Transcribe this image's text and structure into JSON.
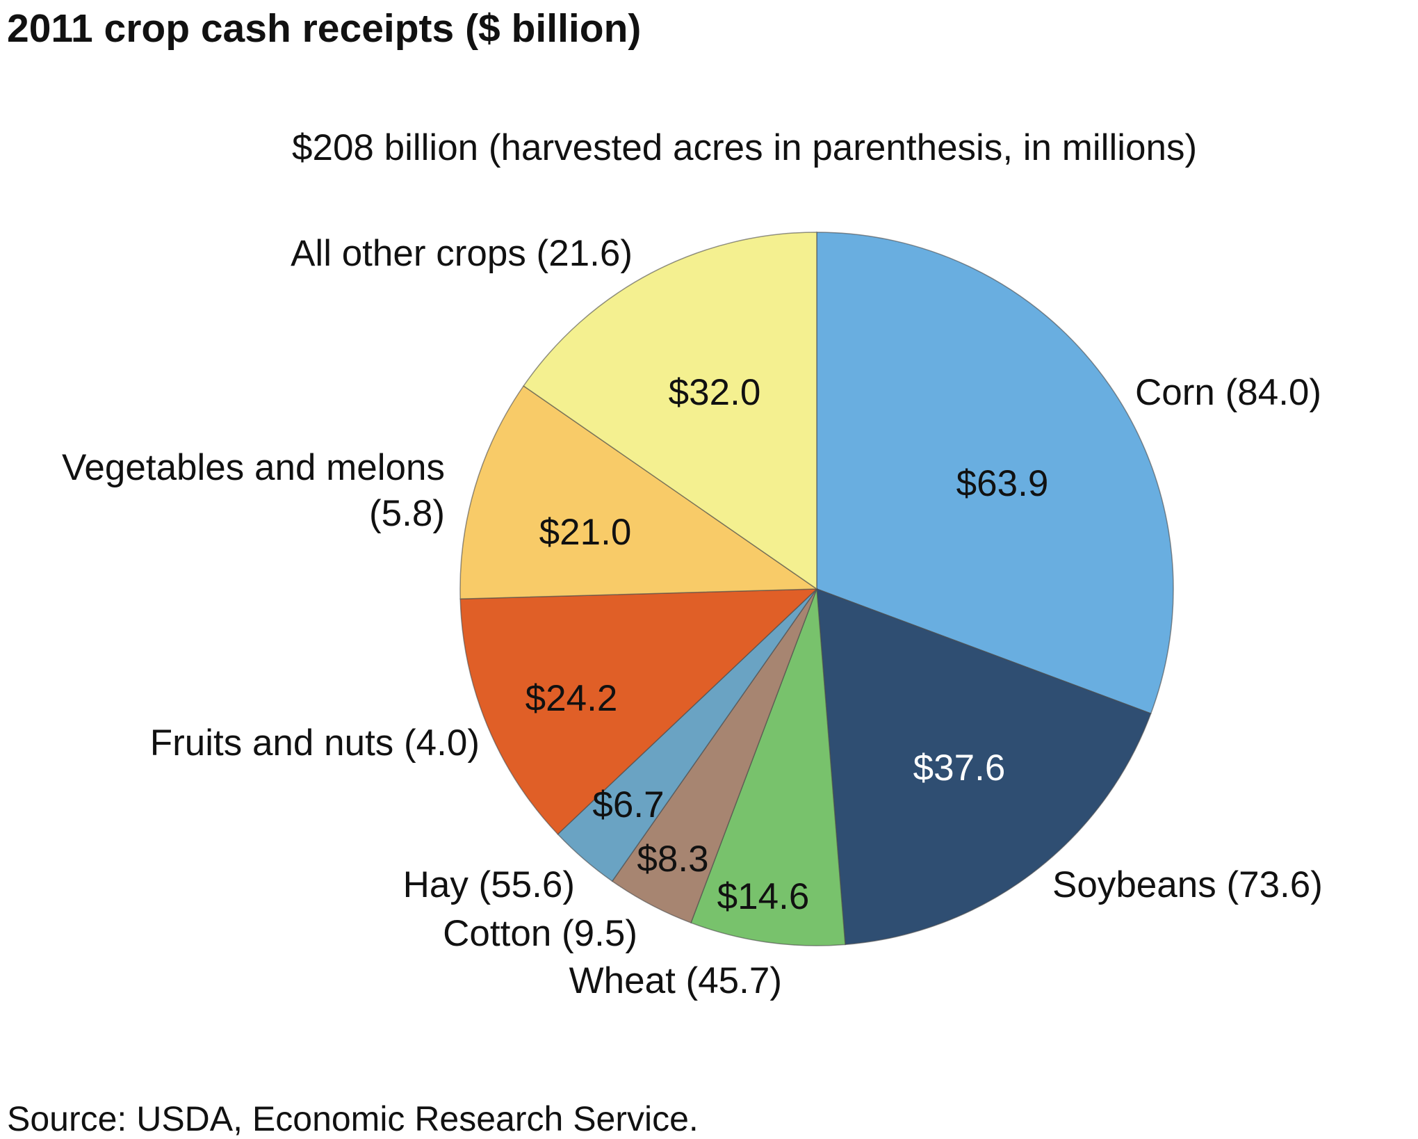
{
  "title": "2011 crop cash receipts ($ billion)",
  "subtitle": "$208 billion (harvested acres in parenthesis, in millions)",
  "source": "Source: USDA, Economic Research Service.",
  "chart_data": {
    "type": "pie",
    "title": "2011 crop cash receipts ($ billion)",
    "subtitle": "$208 billion (harvested acres in parenthesis, in millions)",
    "total": 208,
    "start": "12 o'clock, clockwise",
    "slices": [
      {
        "name": "Corn",
        "category_label": [
          "Corn (84.0)"
        ],
        "value": 63.9,
        "value_label": "$63.9",
        "acres": 84.0,
        "color": "#69aee0",
        "value_label_color": "#111111"
      },
      {
        "name": "Soybeans",
        "category_label": [
          "Soybeans (73.6)"
        ],
        "value": 37.6,
        "value_label": "$37.6",
        "acres": 73.6,
        "color": "#2f4e72",
        "value_label_color": "#ffffff"
      },
      {
        "name": "Wheat",
        "category_label": [
          "Wheat (45.7)"
        ],
        "value": 14.6,
        "value_label": "$14.6",
        "acres": 45.7,
        "color": "#78c26c",
        "value_label_color": "#111111"
      },
      {
        "name": "Cotton",
        "category_label": [
          "Cotton (9.5)"
        ],
        "value": 8.3,
        "value_label": "$8.3",
        "acres": 9.5,
        "color": "#a78571",
        "value_label_color": "#111111"
      },
      {
        "name": "Hay",
        "category_label": [
          "Hay (55.6)"
        ],
        "value": 6.7,
        "value_label": "$6.7",
        "acres": 55.6,
        "color": "#6aa3c3",
        "value_label_color": "#111111"
      },
      {
        "name": "Fruits and nuts",
        "category_label": [
          "Fruits and nuts (4.0)"
        ],
        "value": 24.2,
        "value_label": "$24.2",
        "acres": 4.0,
        "color": "#e05f27",
        "value_label_color": "#111111"
      },
      {
        "name": "Vegetables and melons",
        "category_label": [
          "Vegetables and melons",
          "(5.8)"
        ],
        "value": 21.0,
        "value_label": "$21.0",
        "acres": 5.8,
        "color": "#f8cb68",
        "value_label_color": "#111111"
      },
      {
        "name": "All other crops",
        "category_label": [
          "All other crops (21.6)"
        ],
        "value": 32.0,
        "value_label": "$32.0",
        "acres": 21.6,
        "color": "#f4f090",
        "value_label_color": "#111111"
      }
    ]
  }
}
